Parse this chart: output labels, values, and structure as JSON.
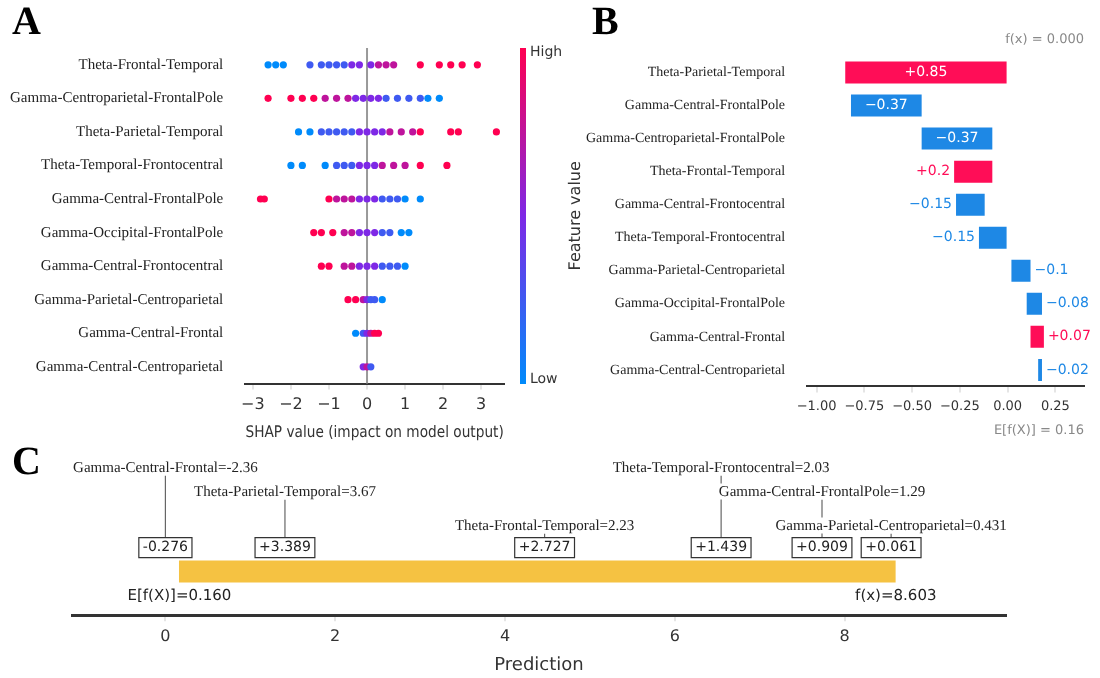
{
  "chart_data": [
    {
      "type": "scatter",
      "title": "A",
      "xlabel": "SHAP value (impact on model output)",
      "clabel": "Feature value",
      "orientation": "horizontal",
      "marker": "circle",
      "categories": [
        "Theta-Frontal-Temporal",
        "Gamma-Centroparietal-FrontalPole",
        "Theta-Parietal-Temporal",
        "Theta-Temporal-Frontocentral",
        "Gamma-Central-FrontalPole",
        "Gamma-Occipital-FrontalPole",
        "Gamma-Central-Frontocentral",
        "Gamma-Parietal-Centroparietal",
        "Gamma-Central-Frontal",
        "Gamma-Central-Centroparietal"
      ],
      "series": [
        {
          "x": [
            "Theta-Frontal-Temporal",
            "Theta-Frontal-Temporal",
            "Theta-Frontal-Temporal",
            "Theta-Frontal-Temporal",
            "Theta-Frontal-Temporal",
            "Theta-Frontal-Temporal",
            "Theta-Frontal-Temporal",
            "Theta-Frontal-Temporal",
            "Theta-Frontal-Temporal",
            "Theta-Frontal-Temporal",
            "Theta-Frontal-Temporal",
            "Theta-Frontal-Temporal",
            "Theta-Frontal-Temporal",
            "Theta-Frontal-Temporal",
            "Theta-Frontal-Temporal",
            "Theta-Frontal-Temporal",
            "Theta-Frontal-Temporal",
            "Theta-Frontal-Temporal",
            "Theta-Frontal-Temporal"
          ],
          "values": [
            -2.6,
            -2.4,
            -2.2,
            -1.5,
            -1.2,
            -1.0,
            -0.8,
            -0.6,
            -0.4,
            -0.2,
            0.1,
            0.3,
            0.5,
            0.7,
            1.4,
            1.9,
            2.2,
            2.5,
            2.9
          ],
          "colors": [
            "#008bfb",
            "#008bfb",
            "#008bfb",
            "#3f5af1",
            "#3f5af1",
            "#3f5af1",
            "#3f5af1",
            "#3f5af1",
            "#7e28e6",
            "#7e28e6",
            "#7e28e6",
            "#be149c",
            "#be149c",
            "#be149c",
            "#ff0051",
            "#ff0051",
            "#ff0051",
            "#ff0051",
            "#ff0051"
          ]
        },
        {
          "x": [
            "Gamma-Centroparietal-FrontalPole",
            "Gamma-Centroparietal-FrontalPole",
            "Gamma-Centroparietal-FrontalPole",
            "Gamma-Centroparietal-FrontalPole",
            "Gamma-Centroparietal-FrontalPole",
            "Gamma-Centroparietal-FrontalPole",
            "Gamma-Centroparietal-FrontalPole",
            "Gamma-Centroparietal-FrontalPole",
            "Gamma-Centroparietal-FrontalPole",
            "Gamma-Centroparietal-FrontalPole",
            "Gamma-Centroparietal-FrontalPole",
            "Gamma-Centroparietal-FrontalPole",
            "Gamma-Centroparietal-FrontalPole",
            "Gamma-Centroparietal-FrontalPole",
            "Gamma-Centroparietal-FrontalPole",
            "Gamma-Centroparietal-FrontalPole",
            "Gamma-Centroparietal-FrontalPole"
          ],
          "values": [
            -2.6,
            -2.0,
            -1.7,
            -1.4,
            -1.1,
            -0.8,
            -0.5,
            -0.3,
            -0.1,
            0.1,
            0.3,
            0.5,
            0.8,
            1.1,
            1.4,
            1.6,
            1.9
          ],
          "colors": [
            "#ff0051",
            "#ff0051",
            "#ff0051",
            "#ff0051",
            "#be149c",
            "#be149c",
            "#be149c",
            "#7e28e6",
            "#7e28e6",
            "#7e28e6",
            "#7e28e6",
            "#3f5af1",
            "#3f5af1",
            "#3f5af1",
            "#3f5af1",
            "#008bfb",
            "#008bfb"
          ]
        },
        {
          "x": [
            "Theta-Parietal-Temporal",
            "Theta-Parietal-Temporal",
            "Theta-Parietal-Temporal",
            "Theta-Parietal-Temporal",
            "Theta-Parietal-Temporal",
            "Theta-Parietal-Temporal",
            "Theta-Parietal-Temporal",
            "Theta-Parietal-Temporal",
            "Theta-Parietal-Temporal",
            "Theta-Parietal-Temporal",
            "Theta-Parietal-Temporal",
            "Theta-Parietal-Temporal",
            "Theta-Parietal-Temporal",
            "Theta-Parietal-Temporal",
            "Theta-Parietal-Temporal",
            "Theta-Parietal-Temporal",
            "Theta-Parietal-Temporal",
            "Theta-Parietal-Temporal"
          ],
          "values": [
            -1.8,
            -1.5,
            -1.2,
            -1.0,
            -0.8,
            -0.6,
            -0.4,
            -0.2,
            0,
            0.2,
            0.4,
            0.6,
            0.9,
            1.2,
            1.4,
            2.2,
            2.4,
            3.4
          ],
          "colors": [
            "#008bfb",
            "#008bfb",
            "#3f5af1",
            "#3f5af1",
            "#3f5af1",
            "#3f5af1",
            "#3f5af1",
            "#7e28e6",
            "#7e28e6",
            "#7e28e6",
            "#7e28e6",
            "#be149c",
            "#be149c",
            "#be149c",
            "#ff0051",
            "#ff0051",
            "#ff0051",
            "#ff0051"
          ]
        },
        {
          "x": [
            "Theta-Temporal-Frontocentral",
            "Theta-Temporal-Frontocentral",
            "Theta-Temporal-Frontocentral",
            "Theta-Temporal-Frontocentral",
            "Theta-Temporal-Frontocentral",
            "Theta-Temporal-Frontocentral",
            "Theta-Temporal-Frontocentral",
            "Theta-Temporal-Frontocentral",
            "Theta-Temporal-Frontocentral",
            "Theta-Temporal-Frontocentral",
            "Theta-Temporal-Frontocentral",
            "Theta-Temporal-Frontocentral",
            "Theta-Temporal-Frontocentral",
            "Theta-Temporal-Frontocentral"
          ],
          "values": [
            -2.0,
            -1.7,
            -1.1,
            -0.8,
            -0.6,
            -0.4,
            -0.2,
            0,
            0.2,
            0.4,
            0.7,
            1.0,
            1.4,
            2.1
          ],
          "colors": [
            "#008bfb",
            "#008bfb",
            "#008bfb",
            "#3f5af1",
            "#3f5af1",
            "#3f5af1",
            "#7e28e6",
            "#7e28e6",
            "#7e28e6",
            "#be149c",
            "#be149c",
            "#be149c",
            "#ff0051",
            "#ff0051"
          ]
        },
        {
          "x": [
            "Gamma-Central-FrontalPole",
            "Gamma-Central-FrontalPole",
            "Gamma-Central-FrontalPole",
            "Gamma-Central-FrontalPole",
            "Gamma-Central-FrontalPole",
            "Gamma-Central-FrontalPole",
            "Gamma-Central-FrontalPole",
            "Gamma-Central-FrontalPole",
            "Gamma-Central-FrontalPole",
            "Gamma-Central-FrontalPole",
            "Gamma-Central-FrontalPole",
            "Gamma-Central-FrontalPole",
            "Gamma-Central-FrontalPole",
            "Gamma-Central-FrontalPole"
          ],
          "values": [
            -2.8,
            -2.7,
            -1.0,
            -0.8,
            -0.6,
            -0.4,
            -0.2,
            0,
            0.2,
            0.4,
            0.6,
            0.8,
            1.0,
            1.4
          ],
          "colors": [
            "#ff0051",
            "#ff0051",
            "#ff0051",
            "#be149c",
            "#be149c",
            "#be149c",
            "#7e28e6",
            "#7e28e6",
            "#7e28e6",
            "#3f5af1",
            "#3f5af1",
            "#3f5af1",
            "#008bfb",
            "#008bfb"
          ]
        },
        {
          "x": [
            "Gamma-Occipital-FrontalPole",
            "Gamma-Occipital-FrontalPole",
            "Gamma-Occipital-FrontalPole",
            "Gamma-Occipital-FrontalPole",
            "Gamma-Occipital-FrontalPole",
            "Gamma-Occipital-FrontalPole",
            "Gamma-Occipital-FrontalPole",
            "Gamma-Occipital-FrontalPole",
            "Gamma-Occipital-FrontalPole",
            "Gamma-Occipital-FrontalPole",
            "Gamma-Occipital-FrontalPole",
            "Gamma-Occipital-FrontalPole"
          ],
          "values": [
            -1.4,
            -1.2,
            -0.9,
            -0.6,
            -0.4,
            -0.2,
            0,
            0.2,
            0.4,
            0.6,
            0.9,
            1.1
          ],
          "colors": [
            "#ff0051",
            "#ff0051",
            "#ff0051",
            "#be149c",
            "#be149c",
            "#7e28e6",
            "#7e28e6",
            "#7e28e6",
            "#3f5af1",
            "#3f5af1",
            "#008bfb",
            "#008bfb"
          ]
        },
        {
          "x": [
            "Gamma-Central-Frontocentral",
            "Gamma-Central-Frontocentral",
            "Gamma-Central-Frontocentral",
            "Gamma-Central-Frontocentral",
            "Gamma-Central-Frontocentral",
            "Gamma-Central-Frontocentral",
            "Gamma-Central-Frontocentral",
            "Gamma-Central-Frontocentral",
            "Gamma-Central-Frontocentral",
            "Gamma-Central-Frontocentral",
            "Gamma-Central-Frontocentral"
          ],
          "values": [
            -1.2,
            -1.0,
            -0.6,
            -0.4,
            -0.2,
            0,
            0.2,
            0.4,
            0.6,
            0.8,
            1.0
          ],
          "colors": [
            "#ff0051",
            "#ff0051",
            "#be149c",
            "#be149c",
            "#7e28e6",
            "#7e28e6",
            "#7e28e6",
            "#3f5af1",
            "#3f5af1",
            "#3f5af1",
            "#008bfb"
          ]
        },
        {
          "x": [
            "Gamma-Parietal-Centroparietal",
            "Gamma-Parietal-Centroparietal",
            "Gamma-Parietal-Centroparietal",
            "Gamma-Parietal-Centroparietal",
            "Gamma-Parietal-Centroparietal",
            "Gamma-Parietal-Centroparietal",
            "Gamma-Parietal-Centroparietal"
          ],
          "values": [
            -0.5,
            -0.3,
            -0.1,
            0,
            0.1,
            0.2,
            0.4
          ],
          "colors": [
            "#ff0051",
            "#ff0051",
            "#be149c",
            "#7e28e6",
            "#3f5af1",
            "#3f5af1",
            "#008bfb"
          ]
        },
        {
          "x": [
            "Gamma-Central-Frontal",
            "Gamma-Central-Frontal",
            "Gamma-Central-Frontal",
            "Gamma-Central-Frontal",
            "Gamma-Central-Frontal",
            "Gamma-Central-Frontal"
          ],
          "values": [
            -0.3,
            -0.1,
            0,
            0.1,
            0.2,
            0.3
          ],
          "colors": [
            "#008bfb",
            "#3f5af1",
            "#7e28e6",
            "#be149c",
            "#ff0051",
            "#ff0051"
          ]
        },
        {
          "x": [
            "Gamma-Central-Centroparietal",
            "Gamma-Central-Centroparietal",
            "Gamma-Central-Centroparietal"
          ],
          "values": [
            -0.1,
            0,
            0.1
          ],
          "colors": [
            "#7e28e6",
            "#be149c",
            "#3f5af1"
          ]
        }
      ],
      "xlim": [
        -3.2,
        3.6
      ],
      "xticks": [
        {
          "value": -3,
          "label": "−3"
        },
        {
          "value": -2,
          "label": "−2"
        },
        {
          "value": -1,
          "label": "−1"
        },
        0,
        1,
        2,
        3
      ],
      "annotations": [
        "High",
        "Low"
      ],
      "ref_lines": [
        {
          "axis": "x",
          "value": 0,
          "color": "#999999"
        }
      ]
    },
    {
      "type": "bar",
      "title": "B",
      "orientation": "horizontal",
      "categories": [
        "Theta-Parietal-Temporal",
        "Gamma-Central-FrontalPole",
        "Gamma-Centroparietal-FrontalPole",
        "Theta-Frontal-Temporal",
        "Gamma-Central-Frontocentral",
        "Theta-Temporal-Frontocentral",
        "Gamma-Parietal-Centroparietal",
        "Gamma-Occipital-FrontalPole",
        "Gamma-Central-Frontal",
        "Gamma-Central-Centroparietal"
      ],
      "values": [
        0.85,
        -0.37,
        -0.37,
        0.2,
        -0.15,
        -0.15,
        -0.1,
        -0.08,
        0.07,
        -0.02
      ],
      "base": [
        -0.85,
        -0.45,
        -0.08,
        -0.28,
        -0.12,
        0.0,
        0.12,
        0.18,
        0.12,
        0.18
      ],
      "colors": [
        "#ff0d57",
        "#1e88e5",
        "#1e88e5",
        "#ff0d57",
        "#1e88e5",
        "#1e88e5",
        "#1e88e5",
        "#1e88e5",
        "#ff0d57",
        "#1e88e5"
      ],
      "value_labels": [
        "+0.85",
        "−0.37",
        "−0.37",
        "+0.2",
        "−0.15",
        "−0.15",
        "−0.1",
        "−0.08",
        "+0.07",
        "−0.02"
      ],
      "xlim": [
        -1.05,
        0.4
      ],
      "xticks": [
        {
          "value": -1,
          "label": "−1.00"
        },
        {
          "value": -0.75,
          "label": "−0.75"
        },
        {
          "value": -0.5,
          "label": "−0.50"
        },
        {
          "value": -0.25,
          "label": "−0.25"
        },
        {
          "value": 0,
          "label": "0.00"
        },
        {
          "value": 0.25,
          "label": "0.25"
        }
      ],
      "annotations": [
        "f(x) = 0.000",
        "E[f(X)] = 0.16"
      ]
    },
    {
      "type": "bar",
      "title": "C",
      "xlabel": "Prediction",
      "orientation": "horizontal",
      "categories": [
        null
      ],
      "base": [
        0.16
      ],
      "values": [
        8.44
      ],
      "colors": [
        "#f5c242"
      ],
      "annotations": [
        "Gamma-Central-Frontal=-2.36",
        "Theta-Parietal-Temporal=3.67",
        "Theta-Frontal-Temporal=2.23",
        "Theta-Temporal-Frontocentral=2.03",
        "Gamma-Central-FrontalPole=1.29",
        "Gamma-Parietal-Centroparietal=0.431",
        "-0.276",
        "+3.389",
        "+2.727",
        "+1.439",
        "+0.909",
        "+0.061",
        "E[f(X)]=0.160",
        "f(x)=8.603"
      ],
      "xlim": [
        -1.1,
        9.9
      ],
      "xticks": [
        0,
        2,
        4,
        6,
        8
      ]
    }
  ]
}
